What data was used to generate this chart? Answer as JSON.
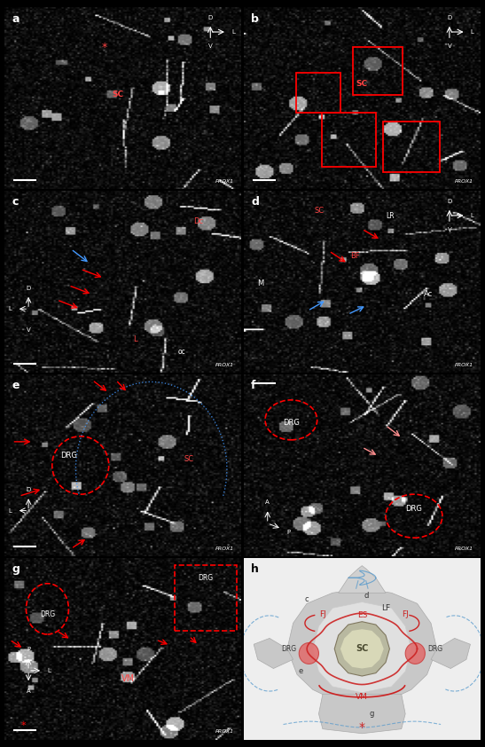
{
  "figure_layout": {
    "panels": [
      "a",
      "b",
      "c",
      "d",
      "e",
      "f",
      "g",
      "h"
    ],
    "nrows": 4,
    "ncols": 2,
    "figsize": [
      5.47,
      8.42
    ],
    "dpi": 100
  },
  "bg_color": "black",
  "panel_label_color": "white",
  "panel_label_color_h": "black",
  "prox1_label": "PROX1",
  "diagram_h": {
    "bg_color": "#eeeeee",
    "outer_vertebra_color": "#c8c8c8",
    "inner_canal_color": "#e0e0e0",
    "sc_fill": "#b8b8a0",
    "sc_inner_fill": "#d8d8b8",
    "sc_label": "SC",
    "sc_label_color": "#4a4a30",
    "drg_fill": "#e07070",
    "drg_edge": "#cc4444",
    "drg_label": "DRG",
    "lymph_red": "#cc2222",
    "lymph_blue": "#5599cc",
    "label_color": "#333333",
    "red_label_color": "#cc2222",
    "star_color": "#cc2222",
    "spinous_fill": "#d0d0d0",
    "bot_body_fill": "#c8c8c8"
  }
}
